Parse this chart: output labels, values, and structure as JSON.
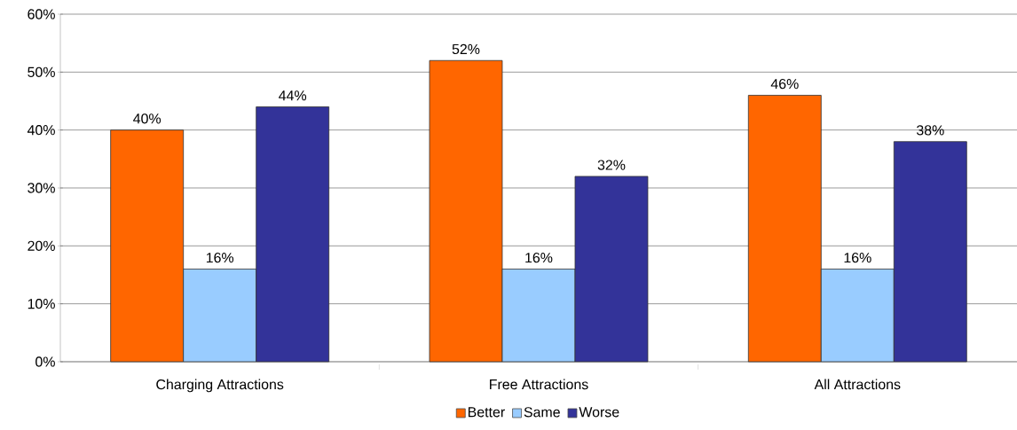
{
  "chart_data": {
    "type": "bar",
    "categories": [
      "Charging Attractions",
      "Free Attractions",
      "All Attractions"
    ],
    "series": [
      {
        "name": "Better",
        "color": "#ff6600",
        "values": [
          40,
          52,
          46
        ],
        "value_labels": [
          "40%",
          "52%",
          "46%"
        ]
      },
      {
        "name": "Same",
        "color": "#99ccff",
        "values": [
          16,
          16,
          16
        ],
        "value_labels": [
          "16%",
          "16%",
          "16%"
        ]
      },
      {
        "name": "Worse",
        "color": "#333399",
        "values": [
          44,
          32,
          38
        ],
        "value_labels": [
          "44%",
          "32%",
          "38%"
        ]
      }
    ],
    "ylim": [
      0,
      60
    ],
    "yticks": [
      {
        "value": 0,
        "label": "0%"
      },
      {
        "value": 10,
        "label": "10%"
      },
      {
        "value": 20,
        "label": "20%"
      },
      {
        "value": 30,
        "label": "30%"
      },
      {
        "value": 40,
        "label": "40%"
      },
      {
        "value": 50,
        "label": "50%"
      },
      {
        "value": 60,
        "label": "60%"
      }
    ],
    "grid": "y",
    "legend": "bottom"
  }
}
